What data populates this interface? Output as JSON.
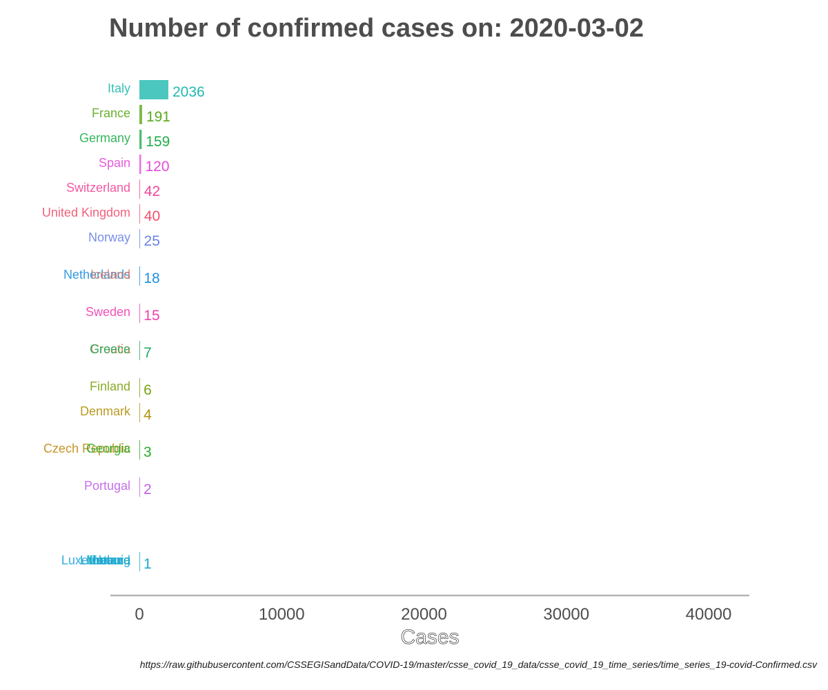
{
  "chart_data": {
    "type": "bar",
    "orientation": "horizontal",
    "title": "Number of confirmed cases on: 2020-03-02",
    "xlabel": "Cases",
    "ylabel": "",
    "caption": "https://raw.githubusercontent.com/CSSEGISandData/COVID-19/master/csse_covid_19_data/csse_covid_19_time_series/time_series_19-covid-Confirmed.csv",
    "xlim": [
      -2000,
      43000
    ],
    "xticks": [
      0,
      10000,
      20000,
      30000,
      40000
    ],
    "grid": false,
    "legend": "none",
    "rows": [
      {
        "rank": 1,
        "countries": [
          {
            "name": "Italy",
            "color": "#1fb9b0"
          }
        ],
        "value": 2036,
        "color": "#1fb9b0"
      },
      {
        "rank": 2,
        "countries": [
          {
            "name": "France",
            "color": "#5ba71c"
          }
        ],
        "value": 191,
        "color": "#5ba71c"
      },
      {
        "rank": 3,
        "countries": [
          {
            "name": "Germany",
            "color": "#1fae4a"
          }
        ],
        "value": 159,
        "color": "#1fae4a"
      },
      {
        "rank": 4,
        "countries": [
          {
            "name": "Spain",
            "color": "#e64ad8"
          }
        ],
        "value": 120,
        "color": "#e64ad8"
      },
      {
        "rank": 5,
        "countries": [
          {
            "name": "Switzerland",
            "color": "#f0479a"
          }
        ],
        "value": 42,
        "color": "#f0479a"
      },
      {
        "rank": 6,
        "countries": [
          {
            "name": "United Kingdom",
            "color": "#f2506d"
          }
        ],
        "value": 40,
        "color": "#f2506d"
      },
      {
        "rank": 7,
        "countries": [
          {
            "name": "Norway",
            "color": "#6b82e6"
          }
        ],
        "value": 25,
        "color": "#6b82e6"
      },
      {
        "rank": 8.5,
        "countries": [
          {
            "name": "Netherlands",
            "color": "#1e8fe0"
          },
          {
            "name": "Iceland",
            "color": "#d77a6a"
          }
        ],
        "value": 18,
        "color": "#1e8fe0"
      },
      {
        "rank": 10,
        "countries": [
          {
            "name": "Sweden",
            "color": "#f040b0"
          }
        ],
        "value": 15,
        "color": "#f040b0"
      },
      {
        "rank": 11.5,
        "countries": [
          {
            "name": "Croatia",
            "color": "#e8703a"
          },
          {
            "name": "Greece",
            "color": "#1fae5f"
          }
        ],
        "value": 7,
        "color": "#1fae5f"
      },
      {
        "rank": 13,
        "countries": [
          {
            "name": "Finland",
            "color": "#7ba313"
          }
        ],
        "value": 6,
        "color": "#7ba313"
      },
      {
        "rank": 14,
        "countries": [
          {
            "name": "Denmark",
            "color": "#b3900a"
          }
        ],
        "value": 4,
        "color": "#b3900a"
      },
      {
        "rank": 15.5,
        "countries": [
          {
            "name": "Czech Republic",
            "color": "#c08a10"
          },
          {
            "name": "Georgia",
            "color": "#2aad2a"
          }
        ],
        "value": 3,
        "color": "#2aad2a"
      },
      {
        "rank": 17,
        "countries": [
          {
            "name": "Portugal",
            "color": "#c060e8"
          }
        ],
        "value": 2,
        "color": "#c060e8"
      },
      {
        "rank": 20,
        "countries": [
          {
            "name": "Luxembourg",
            "color": "#1ea5e0"
          },
          {
            "name": "Lithuania",
            "color": "#22a8c8"
          },
          {
            "name": "Estonia",
            "color": "#1ab0b8"
          },
          {
            "name": "Ireland",
            "color": "#20a0d8"
          },
          {
            "name": "Monaco",
            "color": "#18aacf"
          }
        ],
        "value": 1,
        "color": "#18aacf"
      }
    ]
  }
}
